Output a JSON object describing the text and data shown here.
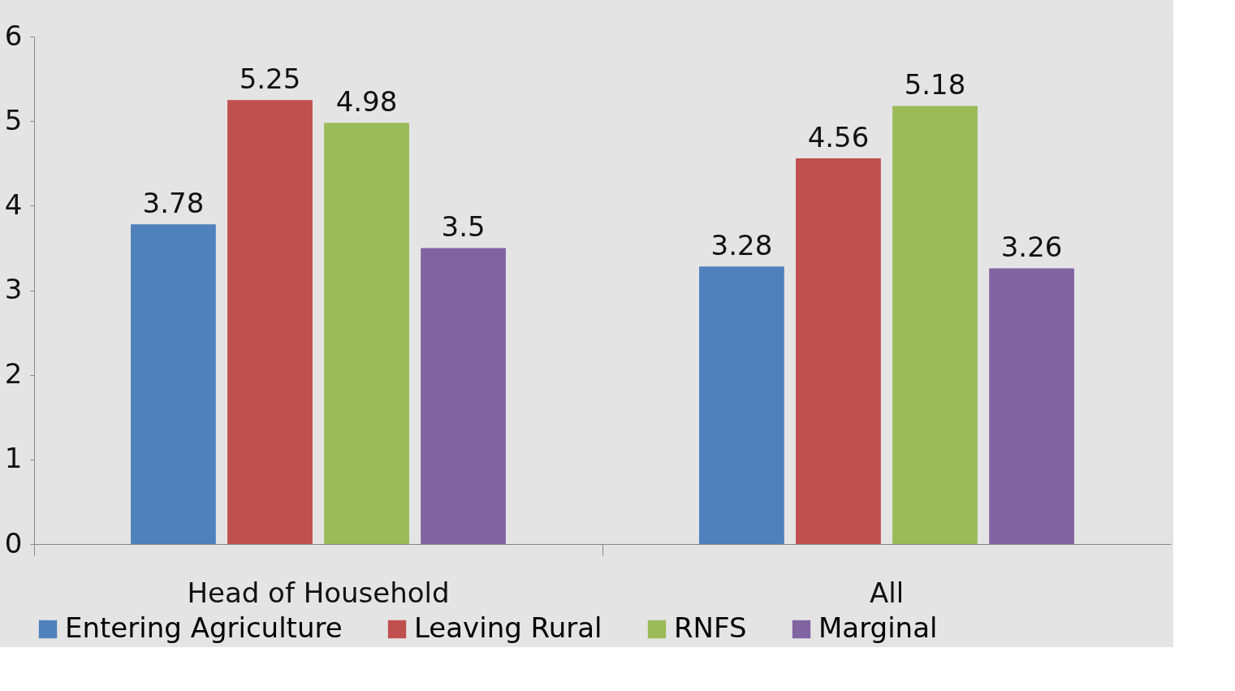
{
  "chart_data": {
    "type": "bar",
    "categories": [
      "Head of Household",
      "All"
    ],
    "series": [
      {
        "name": "Entering Agriculture",
        "color": "#4f81bd",
        "values": [
          3.78,
          3.28
        ]
      },
      {
        "name": "Leaving Rural",
        "color": "#c0504d",
        "values": [
          5.25,
          4.56
        ]
      },
      {
        "name": "RNFS",
        "color": "#9bbb59",
        "values": [
          4.98,
          5.18
        ]
      },
      {
        "name": "Marginal",
        "color": "#8064a2",
        "values": [
          3.5,
          3.26
        ]
      }
    ],
    "ylim": [
      0,
      6
    ],
    "yticks": [
      0,
      1,
      2,
      3,
      4,
      5,
      6
    ],
    "grid": false,
    "legend": "bottom",
    "data_labels": true
  }
}
